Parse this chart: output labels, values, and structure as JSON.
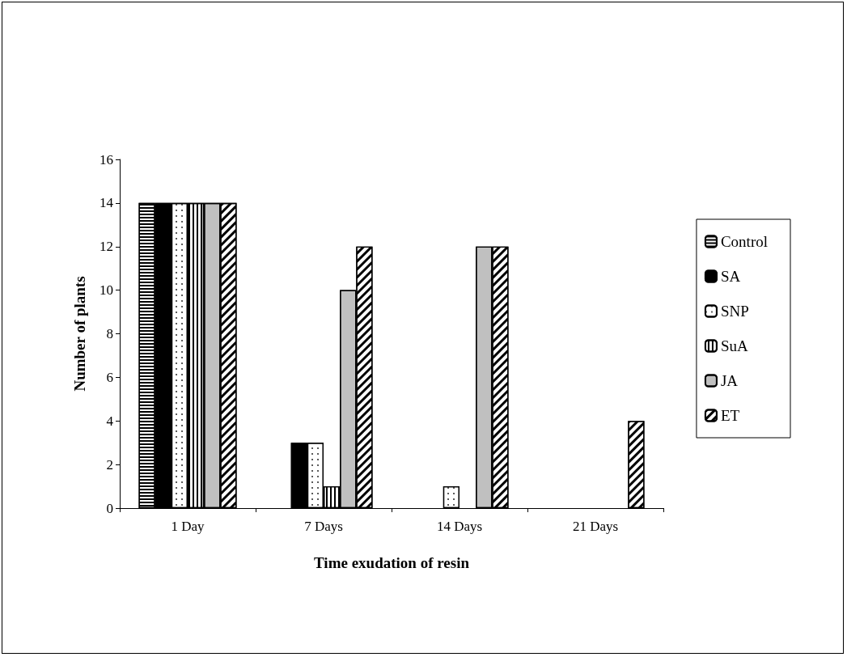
{
  "chart_data": {
    "type": "bar",
    "xlabel": "Time exudation of resin",
    "ylabel": "Number of plants",
    "categories": [
      "1 Day",
      "7 Days",
      "14 Days",
      "21 Days"
    ],
    "series": [
      {
        "name": "Control",
        "color": "#ffffff",
        "values": [
          14,
          0,
          0,
          0
        ]
      },
      {
        "name": "SA",
        "color": "#000000",
        "values": [
          14,
          3,
          0,
          0
        ]
      },
      {
        "name": "SNP",
        "color": "#ffffff",
        "values": [
          14,
          3,
          1,
          0
        ]
      },
      {
        "name": "SuA",
        "color": "#ffffff",
        "values": [
          14,
          1,
          0,
          0
        ]
      },
      {
        "name": "JA",
        "color": "#c0c0c0",
        "values": [
          14,
          10,
          12,
          0
        ]
      },
      {
        "name": "ET",
        "color": "#ffffff",
        "values": [
          14,
          12,
          12,
          4
        ]
      }
    ],
    "ylim": [
      0,
      16
    ],
    "yticks": [
      0,
      2,
      4,
      6,
      8,
      10,
      12,
      14,
      16
    ],
    "grid": false,
    "legend": "right"
  }
}
